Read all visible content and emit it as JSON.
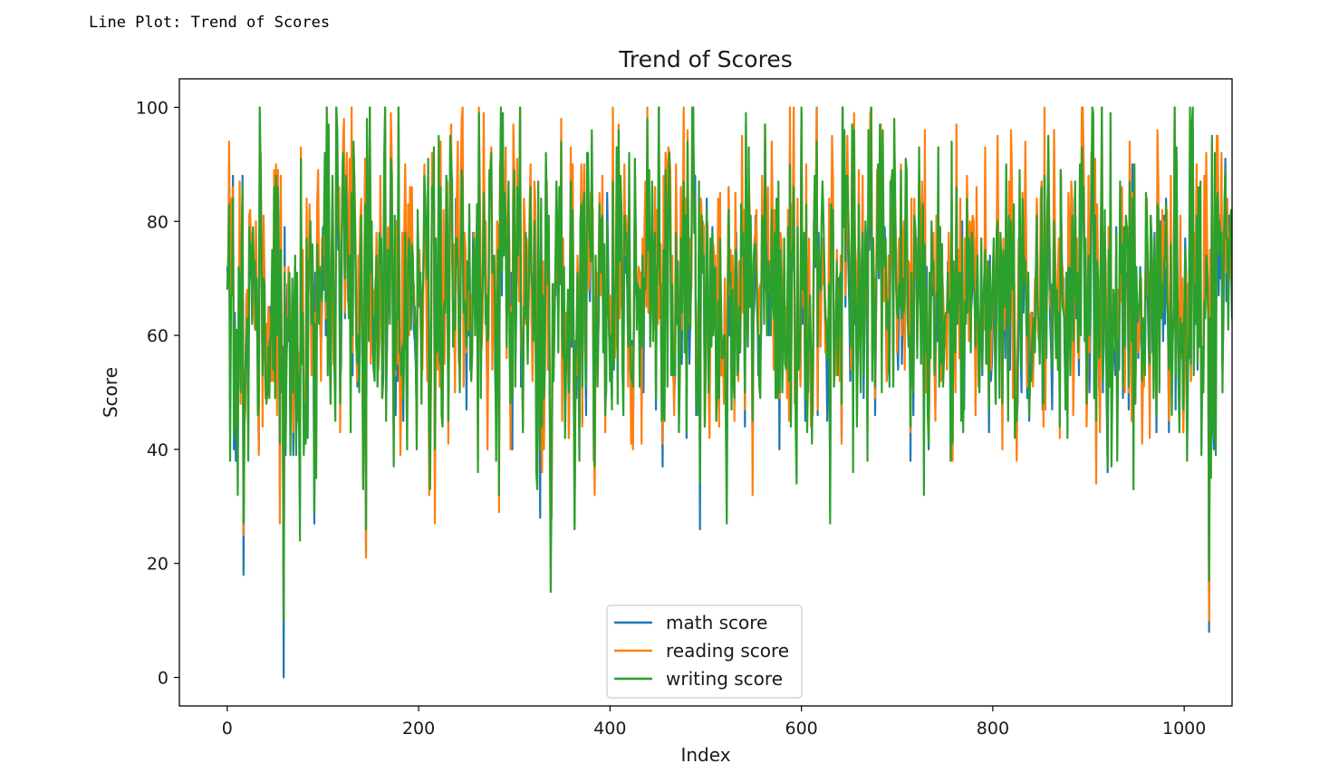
{
  "output_label": "Line Plot: Trend of Scores",
  "chart_data": {
    "type": "line",
    "title": "Trend of Scores",
    "xlabel": "Index",
    "ylabel": "Score",
    "xlim": [
      -50,
      1050
    ],
    "ylim": [
      -5,
      105
    ],
    "xticks": [
      0,
      200,
      400,
      600,
      800,
      1000
    ],
    "yticks": [
      0,
      20,
      40,
      60,
      80,
      100
    ],
    "grid": false,
    "legend_position": "lower center",
    "series": [
      {
        "name": "math score",
        "color": "#1f77b4",
        "values": [
          72,
          69,
          90,
          47,
          76,
          71,
          88,
          40,
          64,
          38,
          58,
          40,
          65,
          78,
          50,
          69,
          88,
          18,
          46,
          54,
          66,
          65,
          44,
          69,
          74,
          73,
          69,
          67,
          70,
          62,
          69,
          63,
          56,
          40,
          97,
          81,
          74,
          50,
          75,
          57,
          55,
          58,
          53,
          59,
          50,
          65,
          55,
          66,
          57,
          82,
          53,
          77,
          53,
          88,
          71,
          33,
          82,
          52,
          58,
          0,
          79,
          39,
          62,
          69,
          59,
          67,
          45,
          60,
          61,
          39,
          58,
          63,
          41,
          61,
          49,
          44,
          30,
          80,
          61,
          62,
          47,
          49,
          50,
          72,
          42,
          73,
          76,
          71,
          58,
          73,
          65,
          27,
          71,
          43,
          79,
          78,
          65,
          63,
          58,
          65,
          79,
          68,
          85,
          60,
          98,
          58,
          87,
          66,
          52,
          70,
          77,
          62,
          54,
          51,
          99,
          84,
          75,
          78,
          51,
          55,
          79,
          91,
          88,
          63,
          83,
          87,
          72,
          65,
          82,
          51,
          89,
          53,
          87,
          75,
          74,
          58,
          51,
          70,
          59,
          71,
          76,
          59,
          42,
          57,
          88,
          22,
          88,
          73,
          68,
          100,
          62,
          77,
          59,
          54,
          62,
          70,
          66,
          60,
          61,
          66,
          82,
          75,
          49,
          52,
          81,
          96,
          53,
          58,
          68,
          67,
          72,
          94,
          79,
          63,
          43,
          81,
          46,
          71,
          52,
          97,
          62,
          46,
          50,
          65,
          45,
          65,
          80,
          62,
          48,
          77,
          66,
          76,
          62,
          77,
          69,
          61,
          59,
          55,
          45,
          78,
          67,
          65,
          69,
          57,
          59,
          74,
          82,
          81,
          74,
          58,
          80,
          35,
          42,
          60,
          87,
          84,
          83,
          34,
          66,
          61,
          56,
          87,
          55,
          86,
          52,
          45,
          72,
          57,
          68,
          88,
          76,
          46,
          67,
          92,
          83,
          80,
          63,
          64,
          54,
          84,
          73,
          80,
          56,
          59,
          75,
          85,
          89,
          58,
          65,
          68,
          47,
          71,
          60,
          80,
          54,
          62,
          64,
          78,
          70,
          65,
          64,
          79,
          44,
          99,
          76,
          59,
          63,
          69,
          88,
          71,
          69,
          58,
          47,
          65,
          88,
          83,
          85,
          59,
          65,
          73,
          53,
          45,
          73,
          70,
          37,
          81,
          97,
          67,
          88,
          77,
          76,
          86,
          63,
          65,
          78,
          67,
          46,
          71,
          40,
          90,
          81,
          56,
          67,
          80,
          74,
          69,
          99,
          51,
          53,
          49,
          73,
          66,
          67,
          68,
          59,
          71,
          77,
          83,
          63,
          56,
          67,
          75,
          71,
          43,
          41,
          82,
          61,
          28,
          82,
          41,
          71,
          47,
          62,
          90,
          83,
          61,
          76,
          49,
          24,
          35,
          58,
          61,
          69,
          67,
          79,
          72,
          62,
          77,
          75,
          87,
          52,
          66,
          63,
          46,
          59,
          61,
          63,
          42,
          59,
          80,
          58,
          85,
          52,
          27,
          59,
          49,
          69,
          61,
          44,
          73,
          84,
          45,
          74,
          82,
          59,
          46,
          80,
          85,
          71,
          66,
          80,
          87,
          79,
          38,
          38,
          67,
          64,
          57,
          62,
          73,
          73,
          77,
          76,
          57,
          65,
          48,
          50,
          85,
          74,
          60,
          59,
          53,
          49,
          88,
          54,
          63,
          65,
          82,
          52,
          87,
          70,
          84,
          71,
          63,
          51,
          84,
          71,
          74,
          68,
          57,
          82,
          57,
          47,
          59,
          41,
          62,
          86,
          69,
          65,
          68,
          64,
          61,
          61,
          47,
          73,
          50,
          75,
          75,
          70,
          89,
          67,
          78,
          59,
          73,
          79,
          67,
          69,
          86,
          47,
          81,
          64,
          100,
          65,
          65,
          53,
          37,
          79,
          53,
          92,
          81,
          61,
          80,
          81,
          82,
          62,
          63,
          54,
          49,
          53,
          87,
          70,
          73,
          51,
          63,
          72,
          55,
          79,
          91,
          59,
          80,
          42,
          84,
          66,
          55,
          64,
          70,
          92,
          93,
          87,
          88,
          46,
          57,
          54,
          79,
          26,
          73,
          77,
          77,
          71,
          49,
          52,
          84,
          70,
          56,
          48,
          76,
          66,
          79,
          70,
          66,
          72,
          51,
          59,
          74,
          50,
          77,
          60,
          56,
          54,
          54,
          69,
          52,
          35,
          68,
          86,
          60,
          66,
          55,
          72,
          59,
          48,
          71,
          78,
          63,
          59,
          64,
          58,
          72,
          83,
          71,
          70,
          44,
          87,
          65,
          58,
          81,
          71,
          73,
          64,
          39,
          63,
          66,
          81,
          72,
          66,
          53,
          60,
          56,
          61,
          82,
          82,
          66,
          94,
          68,
          69,
          83,
          60,
          73,
          69,
          85,
          72,
          58,
          80,
          58,
          78,
          53,
          79,
          40,
          69,
          65,
          59,
          66,
          67,
          59,
          63,
          54,
          78,
          49,
          92,
          46,
          71,
          73,
          94,
          55,
          51,
          43,
          75,
          56,
          61,
          52,
          99,
          62,
          63,
          70,
          45,
          77,
          52,
          50,
          69,
          58,
          51,
          47,
          48,
          75,
          81,
          72,
          100,
          46,
          78,
          62,
          61,
          70,
          75,
          72,
          68,
          65,
          59,
          45,
          52,
          77,
          29,
          77,
          83,
          78,
          58,
          53,
          54,
          70,
          59,
          70,
          58,
          66,
          42,
          100,
          86,
          87,
          65,
          79,
          84,
          73,
          65,
          52,
          58,
          93,
          44,
          87,
          62,
          66,
          52,
          57,
          85,
          65,
          55,
          71,
          85,
          49,
          64,
          75,
          78,
          47,
          87,
          75,
          86,
          90,
          57,
          68,
          70,
          46,
          63,
          80,
          83,
          70,
          93,
          87,
          57,
          85,
          66,
          79,
          73,
          52,
          54,
          73,
          54,
          77,
          80,
          82,
          52,
          91,
          74,
          75,
          60,
          54,
          64,
          69,
          78,
          55,
          66,
          66,
          57,
          81,
          77,
          70,
          62,
          69,
          38,
          73,
          62,
          46,
          71,
          78,
          74,
          64,
          69,
          89,
          67,
          63,
          81,
          80,
          42,
          82,
          55,
          72,
          50,
          40,
          62,
          64,
          76,
          67,
          75,
          60,
          48,
          70,
          59,
          87,
          58,
          79,
          53,
          72,
          56,
          62,
          60,
          58,
          59,
          73,
          64,
          71,
          38,
          84,
          42,
          67,
          62,
          58,
          89,
          67,
          74,
          62,
          73,
          55,
          80,
          51,
          47,
          69,
          63,
          76,
          64,
          67,
          68,
          64,
          66,
          72,
          79,
          67,
          48,
          77,
          71,
          57,
          55,
          63,
          67,
          53,
          66,
          69,
          80,
          61,
          55,
          64,
          43,
          74,
          52,
          55,
          62,
          68,
          63,
          48,
          68,
          85,
          74,
          57,
          71,
          68,
          48,
          71,
          67,
          56,
          85,
          67,
          49,
          75,
          54,
          87,
          77,
          57,
          76,
          51,
          43,
          45,
          48,
          69,
          78,
          58,
          50,
          79,
          64,
          72,
          81,
          63,
          49,
          71,
          45,
          54,
          58,
          64,
          55,
          58,
          64,
          72,
          83,
          65,
          60,
          63,
          71,
          77,
          47,
          49,
          88,
          54,
          61,
          76,
          89,
          70,
          62,
          57,
          47,
          65,
          84,
          65,
          57,
          66,
          61,
          66,
          46,
          89,
          75,
          68,
          70,
          57,
          49,
          71,
          51,
          77,
          73,
          61,
          74,
          84,
          50,
          59,
          85,
          63,
          71,
          65,
          53,
          86,
          67,
          91,
          92,
          78,
          67,
          69,
          50,
          61,
          81,
          50,
          62,
          79,
          95,
          88,
          49,
          79,
          38,
          81,
          66,
          51,
          49,
          75,
          90,
          50,
          67,
          72,
          64,
          48,
          36,
          67,
          59,
          87,
          46,
          60,
          57,
          56,
          53,
          79,
          45,
          58,
          54,
          76,
          67,
          77,
          49,
          74,
          53,
          70,
          71,
          69,
          47,
          87,
          68,
          50,
          90,
          39,
          81,
          52,
          66,
          65,
          56,
          59,
          72,
          68,
          44,
          60,
          55,
          57,
          74,
          71,
          65,
          57,
          47,
          81,
          71,
          57,
          58,
          78,
          62,
          43,
          84,
          82,
          51,
          80,
          71,
          78,
          59,
          81,
          62,
          84,
          75,
          63,
          43,
          59,
          75,
          53,
          60,
          63,
          98,
          47,
          82,
          66,
          53,
          48,
          68,
          58,
          62,
          43,
          55,
          77,
          70,
          48,
          63,
          56,
          92,
          52,
          86,
          96,
          58,
          67,
          70,
          82,
          54,
          78,
          65,
          75,
          41,
          57,
          52,
          75,
          68,
          81,
          75,
          66,
          8,
          66,
          44,
          88,
          44,
          40,
          83,
          48,
          92,
          83,
          67,
          79,
          70,
          85,
          55,
          62,
          81,
          91,
          66,
          75,
          68,
          81,
          75,
          74,
          63,
          77
        ],
        "seed": 11
      },
      {
        "name": "reading score",
        "color": "#ff7f0e",
        "values": [],
        "seed": 23
      },
      {
        "name": "writing score",
        "color": "#2ca02c",
        "values": [],
        "seed": 37
      }
    ]
  }
}
